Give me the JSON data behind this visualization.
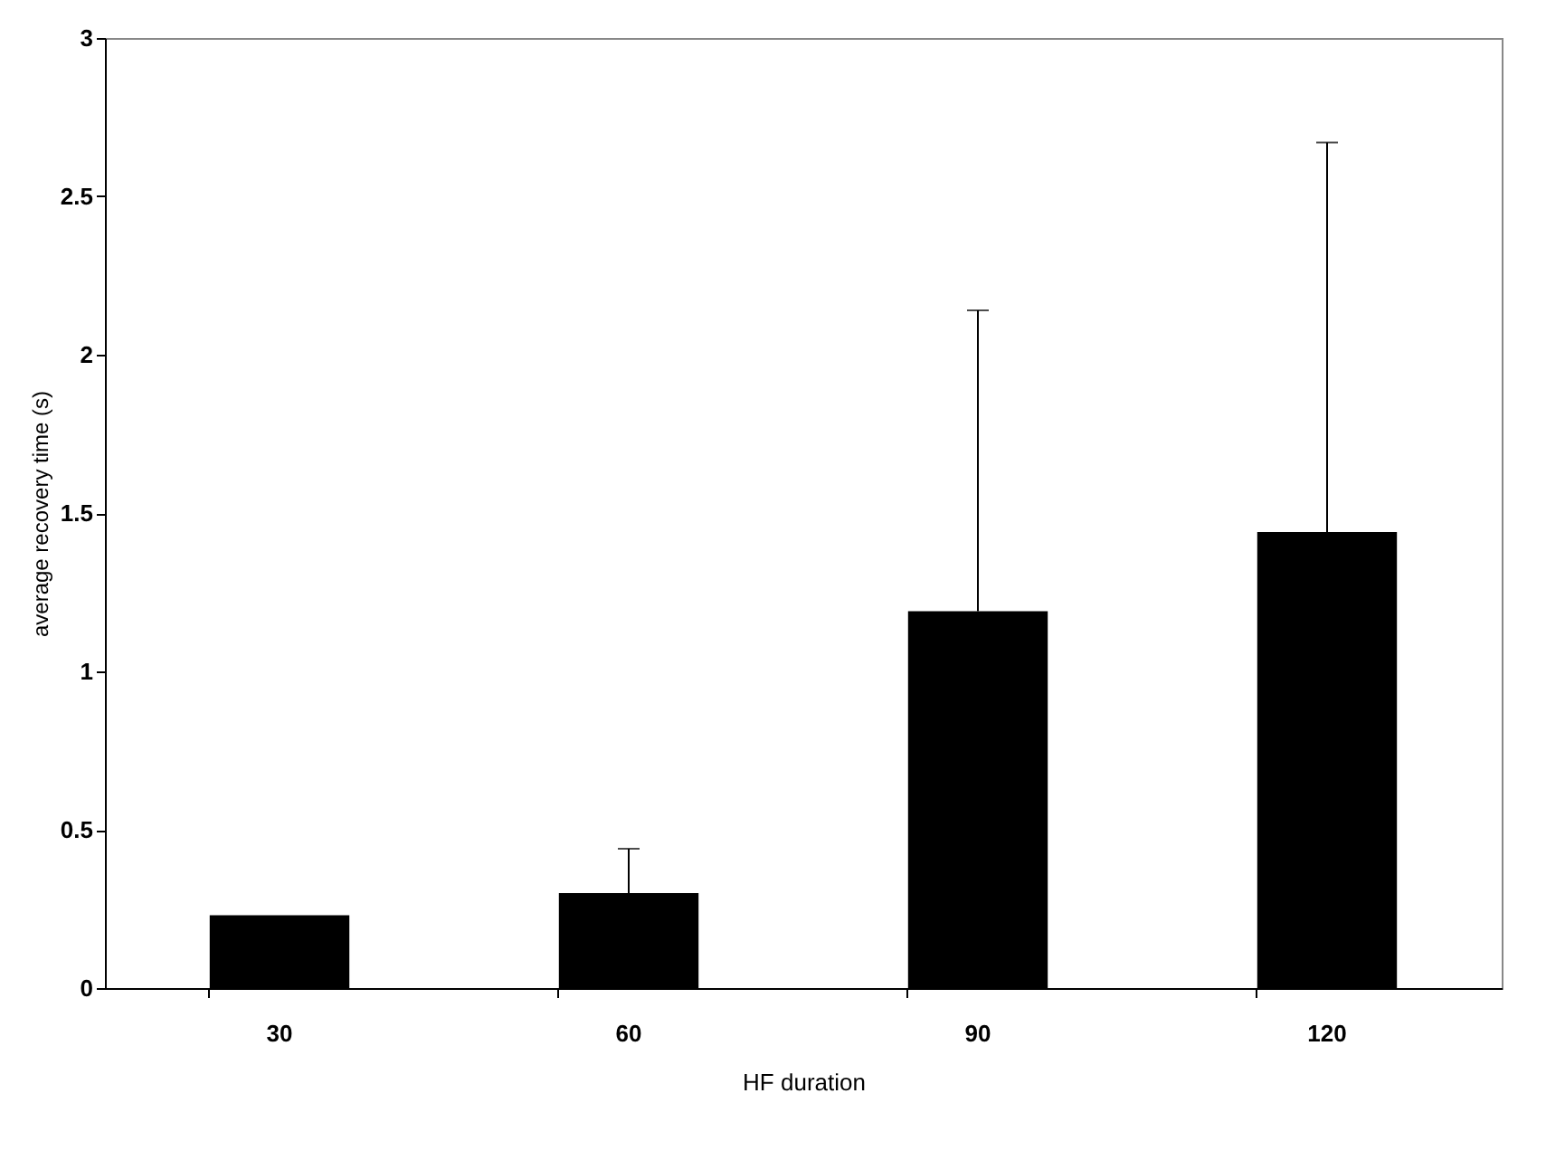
{
  "chart_data": {
    "type": "bar",
    "xlabel": "HF duration",
    "ylabel": "average recovery time (s)",
    "categories": [
      "30",
      "60",
      "90",
      "120"
    ],
    "values": [
      0.23,
      0.3,
      1.19,
      1.44
    ],
    "errors": [
      null,
      [
        0.3,
        0.44
      ],
      [
        1.19,
        2.14
      ],
      [
        1.44,
        2.67
      ]
    ],
    "color": "#000000",
    "ylim": [
      0,
      3
    ],
    "yticks": [
      0,
      0.5,
      1,
      1.5,
      2,
      2.5,
      3
    ],
    "grid": false
  }
}
